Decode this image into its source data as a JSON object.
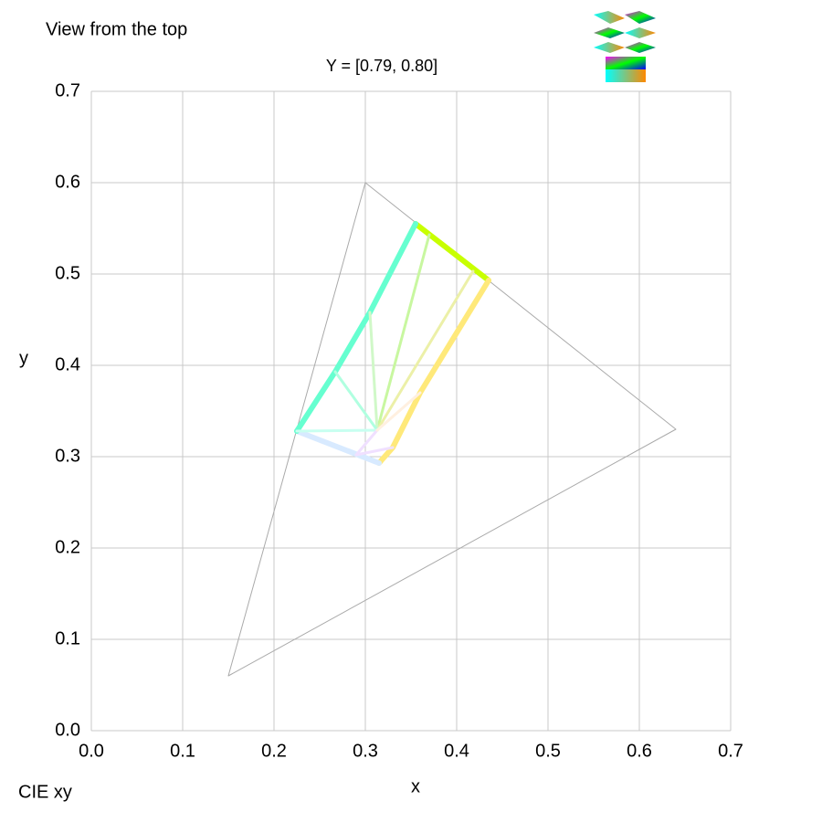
{
  "chart_data": {
    "type": "line",
    "header": "View from the top",
    "title": "Y = [0.79, 0.80]",
    "footer": "CIE xy",
    "x_label": "x",
    "y_label": "y",
    "xlim": [
      0,
      0.7
    ],
    "ylim": [
      0,
      0.7
    ],
    "xticks": [
      {
        "value": 0,
        "label": "0.0"
      },
      0.1,
      0.2,
      0.3,
      0.4,
      0.5,
      0.6,
      0.7
    ],
    "yticks": [
      {
        "value": 0,
        "label": "0.0"
      },
      0.1,
      0.2,
      0.3,
      0.4,
      0.5,
      0.6,
      0.7
    ],
    "grid": true,
    "series": [
      {
        "color": "#aaaaaa",
        "width": 1,
        "x": [
          0.64,
          0.3,
          0.15,
          0.64
        ],
        "values": [
          0.33,
          0.6,
          0.06,
          0.33
        ]
      },
      {
        "color": "#c8ff00",
        "width": 6,
        "x": [
          0.355,
          0.435
        ],
        "values": [
          0.555,
          0.493
        ]
      },
      {
        "color": "#ffe97a",
        "width": 6,
        "x": [
          0.435,
          0.36,
          0.33,
          0.315
        ],
        "values": [
          0.493,
          0.37,
          0.31,
          0.293
        ]
      },
      {
        "color": "#d8eaff",
        "width": 6,
        "x": [
          0.315,
          0.225
        ],
        "values": [
          0.293,
          0.328
        ]
      },
      {
        "color": "#66ffd0",
        "width": 6,
        "x": [
          0.225,
          0.267,
          0.305,
          0.355
        ],
        "values": [
          0.328,
          0.393,
          0.458,
          0.555
        ]
      },
      {
        "color": "#c8f7a0",
        "width": 3,
        "x": [
          0.313,
          0.37
        ],
        "values": [
          0.329,
          0.543
        ]
      },
      {
        "color": "#ecf0a8",
        "width": 3,
        "x": [
          0.313,
          0.418
        ],
        "values": [
          0.329,
          0.503
        ]
      },
      {
        "color": "#d0f8c8",
        "width": 3,
        "x": [
          0.313,
          0.305
        ],
        "values": [
          0.329,
          0.458
        ]
      },
      {
        "color": "#b0ffe0",
        "width": 3,
        "x": [
          0.313,
          0.267
        ],
        "values": [
          0.329,
          0.393
        ]
      },
      {
        "color": "#c8fff0",
        "width": 3,
        "x": [
          0.313,
          0.225
        ],
        "values": [
          0.329,
          0.328
        ]
      },
      {
        "color": "#f0e0ff",
        "width": 3,
        "x": [
          0.313,
          0.29,
          0.33
        ],
        "values": [
          0.329,
          0.302,
          0.31
        ]
      },
      {
        "color": "#fff0e0",
        "width": 3,
        "x": [
          0.313,
          0.36
        ],
        "values": [
          0.329,
          0.37
        ]
      }
    ]
  }
}
